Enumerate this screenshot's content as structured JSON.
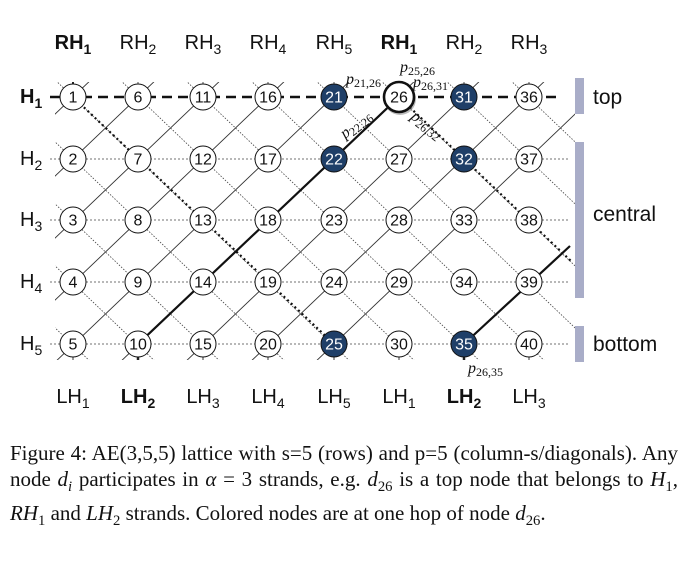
{
  "diagram": {
    "top_labels": [
      "RH1",
      "RH2",
      "RH3",
      "RH4",
      "RH5",
      "RH1",
      "RH2",
      "RH3"
    ],
    "top_bold": [
      true,
      false,
      false,
      false,
      false,
      true,
      false,
      false
    ],
    "bottom_labels": [
      "LH1",
      "LH2",
      "LH3",
      "LH4",
      "LH5",
      "LH1",
      "LH2",
      "LH3"
    ],
    "bottom_bold": [
      false,
      true,
      false,
      false,
      false,
      false,
      true,
      false
    ],
    "row_labels": [
      "H1",
      "H2",
      "H3",
      "H4",
      "H5"
    ],
    "row_bold": [
      true,
      false,
      false,
      false,
      false
    ],
    "nodes": [
      1,
      2,
      3,
      4,
      5,
      6,
      7,
      8,
      9,
      10,
      11,
      12,
      13,
      14,
      15,
      16,
      17,
      18,
      19,
      20,
      21,
      22,
      23,
      24,
      25,
      26,
      27,
      28,
      29,
      30,
      31,
      32,
      33,
      34,
      35,
      36,
      37,
      38,
      39,
      40
    ],
    "highlighted_nodes": [
      21,
      22,
      25,
      31,
      32,
      35
    ],
    "focus_node": 26,
    "edge_labels": [
      {
        "text": "p21,26",
        "main": "p",
        "sub": "21,26"
      },
      {
        "text": "p25,26",
        "main": "p",
        "sub": "25,26"
      },
      {
        "text": "p26,31",
        "main": "p",
        "sub": "26,31"
      },
      {
        "text": "p22,26",
        "main": "p",
        "sub": "22,26"
      },
      {
        "text": "p26,32",
        "main": "p",
        "sub": "26,32"
      },
      {
        "text": "p26,35",
        "main": "p",
        "sub": "26,35"
      }
    ],
    "region_labels": [
      "top",
      "central",
      "bottom"
    ],
    "colors": {
      "highlight": "#1f3f68",
      "region_bar": "#a9adc8",
      "line": "#111111",
      "text": "#111111"
    }
  },
  "caption": {
    "figure_label": "Figure 4:",
    "text_html": "Figure 4: AE(3,5,5) lattice with s=5 (rows) and p=5 (column-s/diagonals). Any node <i>d<sub>i</sub></i> participates in <i>α</i> = 3 strands, e.g. <i>d</i><sub>26</sub> is a top node that belongs to <i>H</i><sub>1</sub>, <i>RH</i><sub>1</sub> and <i>LH</i><sub>2</sub> strands. Colored nodes are at one hop of node <i>d</i><sub>26</sub>.",
    "text": "Figure 4: AE(3,5,5) lattice with s=5 (rows) and p=5 (column-s/diagonals). Any node di participates in α = 3 strands, e.g. d26 is a top node that belongs to H1, RH1 and LH2 strands. Colored nodes are at one hop of node d26."
  }
}
